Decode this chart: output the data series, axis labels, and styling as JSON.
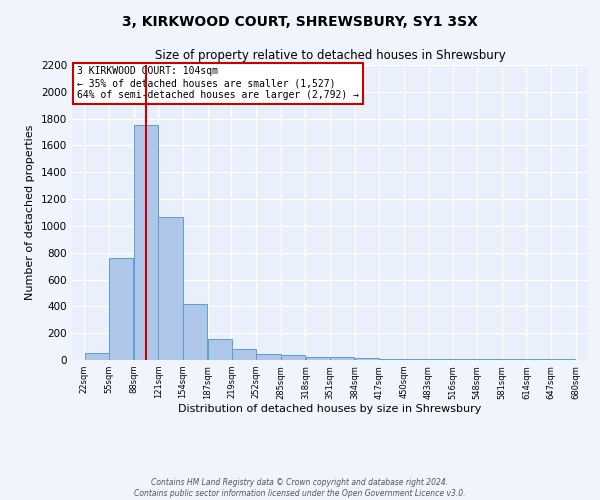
{
  "title1": "3, KIRKWOOD COURT, SHREWSBURY, SY1 3SX",
  "title2": "Size of property relative to detached houses in Shrewsbury",
  "xlabel": "Distribution of detached houses by size in Shrewsbury",
  "ylabel": "Number of detached properties",
  "bin_edges": [
    22,
    55,
    88,
    121,
    154,
    187,
    219,
    252,
    285,
    318,
    351,
    384,
    417,
    450,
    483,
    516,
    548,
    581,
    614,
    647,
    680
  ],
  "bar_heights": [
    55,
    760,
    1750,
    1070,
    420,
    155,
    80,
    45,
    35,
    25,
    20,
    15,
    5,
    5,
    5,
    5,
    5,
    5,
    5,
    5
  ],
  "bar_color": "#aec6e8",
  "bar_edge_color": "#5a9fd4",
  "background_color": "#eaf0fb",
  "grid_color": "#ffffff",
  "vline_x": 104,
  "vline_color": "#cc0000",
  "annotation_title": "3 KIRKWOOD COURT: 104sqm",
  "annotation_line1": "← 35% of detached houses are smaller (1,527)",
  "annotation_line2": "64% of semi-detached houses are larger (2,792) →",
  "annotation_box_color": "#ffffff",
  "annotation_box_edge": "#cc0000",
  "ylim": [
    0,
    2200
  ],
  "yticks": [
    0,
    200,
    400,
    600,
    800,
    1000,
    1200,
    1400,
    1600,
    1800,
    2000,
    2200
  ],
  "xtick_labels": [
    "22sqm",
    "55sqm",
    "88sqm",
    "121sqm",
    "154sqm",
    "187sqm",
    "219sqm",
    "252sqm",
    "285sqm",
    "318sqm",
    "351sqm",
    "384sqm",
    "417sqm",
    "450sqm",
    "483sqm",
    "516sqm",
    "548sqm",
    "581sqm",
    "614sqm",
    "647sqm",
    "680sqm"
  ],
  "fig_bg": "#f0f4fc",
  "footer1": "Contains HM Land Registry data © Crown copyright and database right 2024.",
  "footer2": "Contains public sector information licensed under the Open Government Licence v3.0."
}
